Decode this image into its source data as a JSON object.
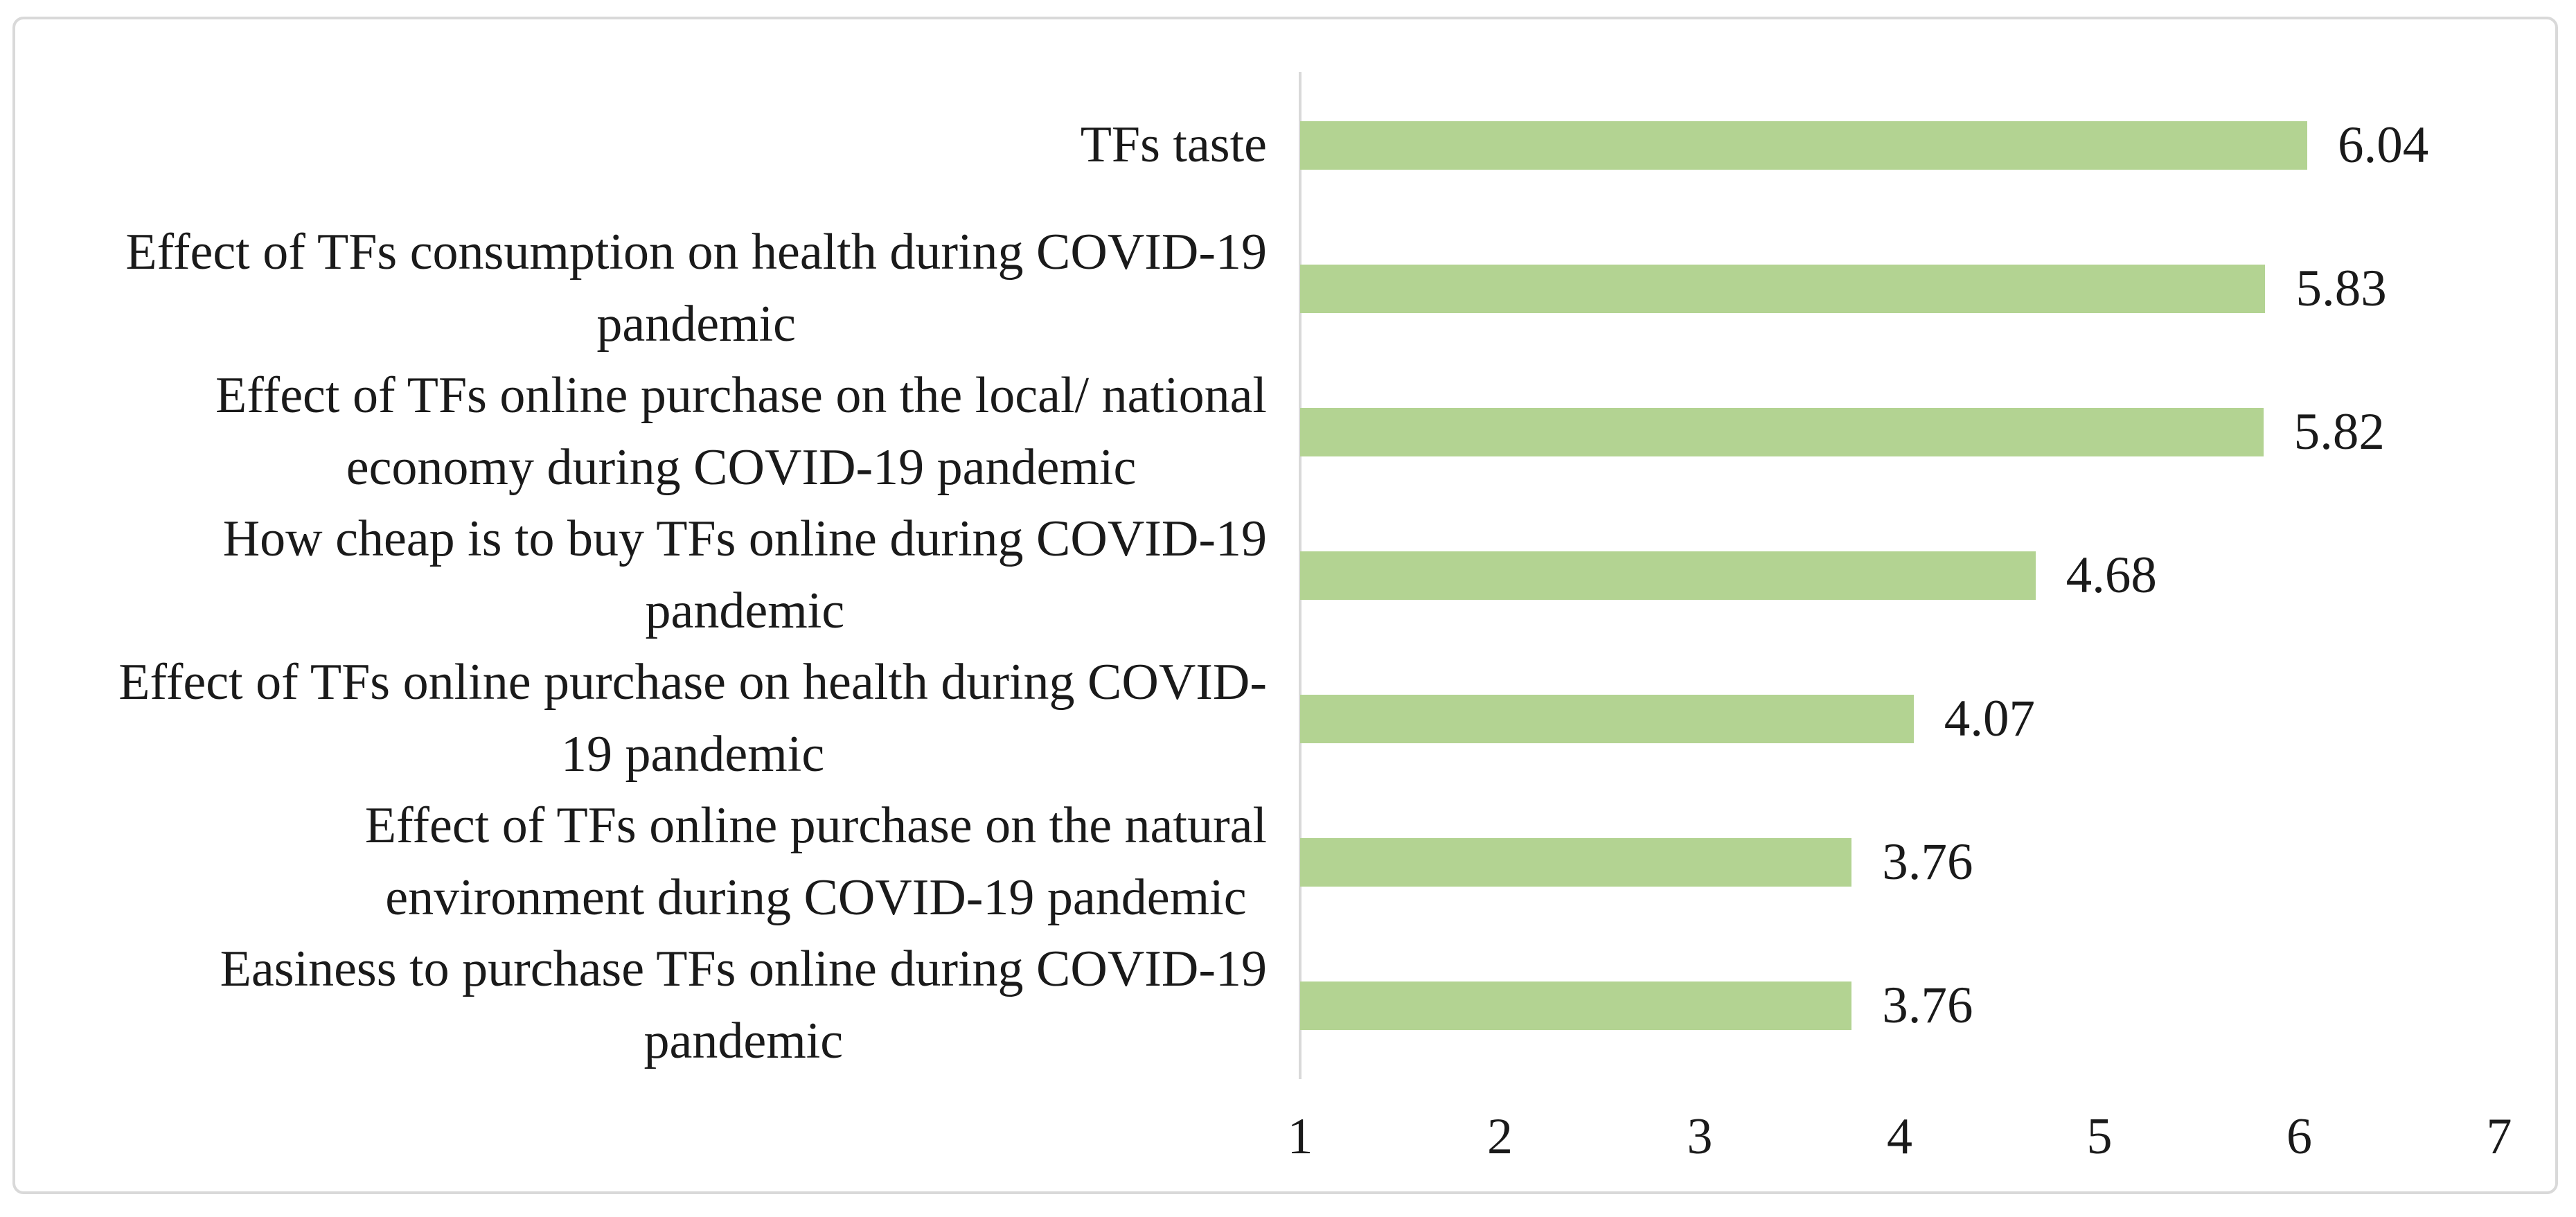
{
  "figure": {
    "background": "#ffffff",
    "border_color": "#d9d9d9",
    "text_color": "#1a1a1a"
  },
  "chart_data": {
    "type": "bar",
    "orientation": "horizontal",
    "title": "",
    "xlabel": "",
    "ylabel": "",
    "grid": "off",
    "legend": "none",
    "xlim": [
      1,
      7
    ],
    "x_ticks": [
      "1",
      "2",
      "3",
      "4",
      "5",
      "6",
      "7"
    ],
    "bar_color": "#b3d392",
    "axis_color": "#d9d9d9",
    "categories": [
      "TFs taste",
      "Effect of TFs consumption on health during COVID-19\npandemic",
      "Effect of TFs online purchase on the local/ national\neconomy during COVID-19 pandemic",
      "How cheap is to buy TFs online during COVID-19\npandemic",
      "Effect of TFs online purchase on health during COVID-\n19 pandemic",
      "Effect of TFs online purchase on the natural\nenvironment during COVID-19 pandemic",
      "Easiness to purchase TFs online during COVID-19\npandemic"
    ],
    "values": [
      6.04,
      5.83,
      5.82,
      4.68,
      4.07,
      3.76,
      3.76
    ],
    "value_labels": [
      "6.04",
      "5.83",
      "5.82",
      "4.68",
      "4.07",
      "3.76",
      "3.76"
    ]
  }
}
